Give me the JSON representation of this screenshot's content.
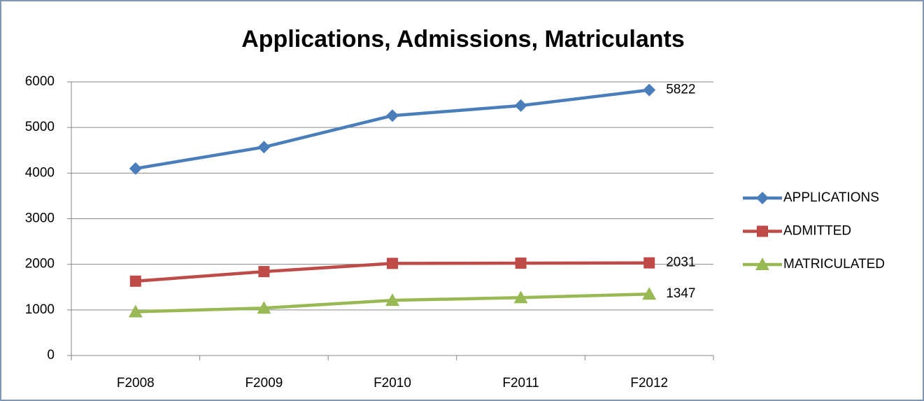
{
  "chart_data": {
    "type": "line",
    "title": "Applications, Admissions, Matriculants",
    "categories": [
      "F2008",
      "F2009",
      "F2010",
      "F2011",
      "F2012"
    ],
    "series": [
      {
        "name": "APPLICATIONS",
        "color": "#4a7ebb",
        "marker": "diamond",
        "values": [
          4100,
          4570,
          5260,
          5480,
          5822
        ]
      },
      {
        "name": "ADMITTED",
        "color": "#be4b48",
        "marker": "square",
        "values": [
          1630,
          1840,
          2020,
          2025,
          2031
        ]
      },
      {
        "name": "MATRICULATED",
        "color": "#98b954",
        "marker": "triangle",
        "values": [
          960,
          1040,
          1210,
          1270,
          1347
        ]
      }
    ],
    "ylim": [
      0,
      6000
    ],
    "yticks": [
      0,
      1000,
      2000,
      3000,
      4000,
      5000,
      6000
    ],
    "grid": true,
    "legend": "right",
    "data_labels": "last"
  }
}
